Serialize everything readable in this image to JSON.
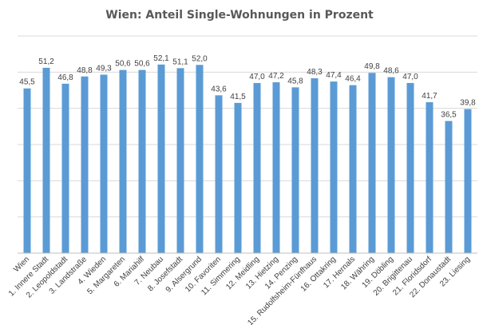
{
  "chart_data": {
    "type": "bar",
    "title": "Wien: Anteil Single-Wohnungen in Prozent",
    "xlabel": "",
    "ylabel": "",
    "ylim": [
      0,
      60
    ],
    "grid": true,
    "bar_color": "#5b9bd5",
    "categories": [
      "Wien",
      "1. Innere Stadt",
      "2. Leopoldstadt",
      "3. Landstraße",
      "4. Wieden",
      "5. Margareten",
      "6. Mariahilf",
      "7. Neubau",
      "8. Josefstadt",
      "9. Alsergrund",
      "10. Favoriten",
      "11. Simmering",
      "12. Meidling",
      "13. Hietzing",
      "14. Penzing",
      "15. Rudolfsheim-Fünfhaus",
      "16. Ottakring",
      "17. Hernals",
      "18. Währing",
      "19. Döbling",
      "20. Brigittenau",
      "21. Floridsdorf",
      "22. Donaustadt",
      "23. Liesing"
    ],
    "values": [
      45.5,
      51.2,
      46.8,
      48.8,
      49.3,
      50.6,
      50.6,
      52.1,
      51.1,
      52.0,
      43.6,
      41.5,
      47.0,
      47.2,
      45.8,
      48.3,
      47.4,
      46.4,
      49.8,
      48.6,
      47.0,
      41.7,
      36.5,
      39.8
    ],
    "value_labels": [
      "45,5",
      "51,2",
      "46,8",
      "48,8",
      "49,3",
      "50,6",
      "50,6",
      "52,1",
      "51,1",
      "52,0",
      "43,6",
      "41,5",
      "47,0",
      "47,2",
      "45,8",
      "48,3",
      "47,4",
      "46,4",
      "49,8",
      "48,6",
      "47,0",
      "41,7",
      "36,5",
      "39,8"
    ]
  }
}
